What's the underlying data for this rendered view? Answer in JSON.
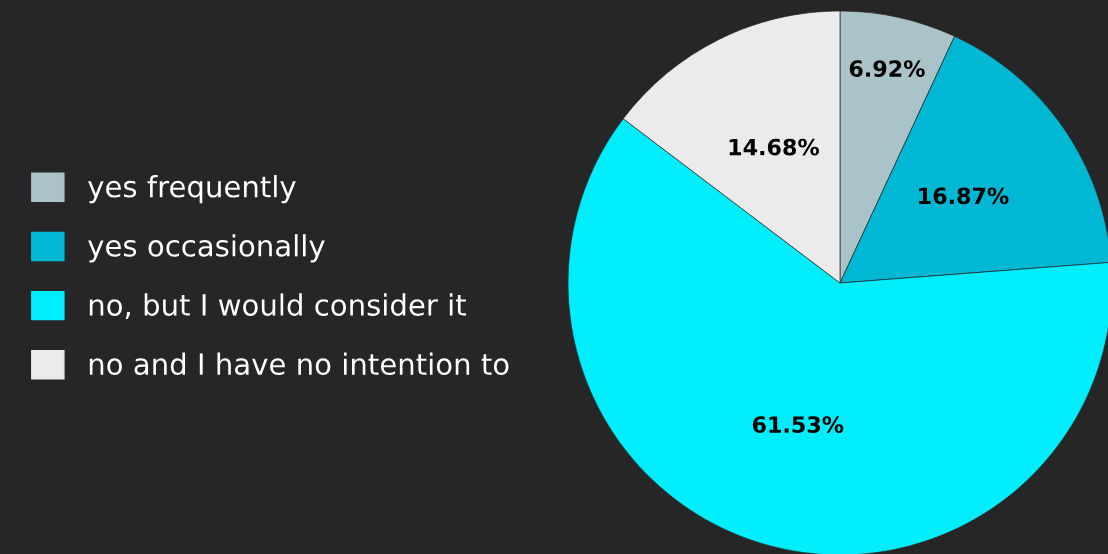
{
  "chart_data": {
    "type": "pie",
    "categories": [
      "yes frequently",
      "yes occasionally",
      "no, but I would consider it",
      "no and I have no intention to"
    ],
    "values": [
      6.92,
      16.87,
      61.53,
      14.68
    ],
    "colors": [
      "#a9c3c8",
      "#00b8d4",
      "#00eefc",
      "#ebebeb"
    ],
    "value_labels": [
      "6.92%",
      "16.87%",
      "61.53%",
      "14.68%"
    ],
    "legend": "left"
  }
}
